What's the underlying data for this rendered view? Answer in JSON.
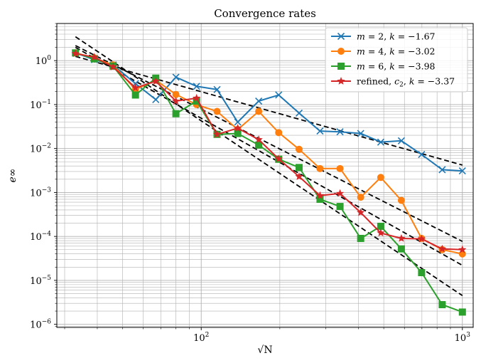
{
  "chart_data": {
    "type": "line",
    "title": "Convergence rates",
    "xlabel": "√N",
    "ylabel": "e∞",
    "xscale": "log",
    "yscale": "log",
    "xlim": [
      28,
      1100
    ],
    "ylim": [
      8.5e-07,
      7
    ],
    "grid": true,
    "legend_position": "top-right",
    "xticks": [
      {
        "value": 100,
        "base": "10",
        "exp": "2"
      },
      {
        "value": 1000,
        "base": "10",
        "exp": "3"
      }
    ],
    "yticks": [
      {
        "value": 1,
        "base": "10",
        "exp": "0"
      },
      {
        "value": 0.1,
        "base": "10",
        "exp": "−1"
      },
      {
        "value": 0.01,
        "base": "10",
        "exp": "−2"
      },
      {
        "value": 0.001,
        "base": "10",
        "exp": "−3"
      },
      {
        "value": 0.0001,
        "base": "10",
        "exp": "−4"
      },
      {
        "value": 1e-05,
        "base": "10",
        "exp": "−5"
      },
      {
        "value": 1e-06,
        "base": "10",
        "exp": "−6"
      }
    ],
    "series": [
      {
        "name": "m = 2, k = −1.67",
        "label_parts": {
          "a": "m",
          "b": " = 2, ",
          "c": "k",
          "d": " = −1.67"
        },
        "color": "#1f77b4",
        "marker": "x",
        "x": [
          33,
          39,
          46,
          56,
          67,
          80,
          96,
          115,
          138,
          166,
          198,
          237,
          285,
          340,
          408,
          487,
          584,
          698,
          837,
          1000
        ],
        "y": [
          1.5,
          1.05,
          0.8,
          0.3,
          0.13,
          0.42,
          0.26,
          0.22,
          0.04,
          0.12,
          0.165,
          0.064,
          0.025,
          0.024,
          0.022,
          0.014,
          0.015,
          0.0073,
          0.0033,
          0.0031
        ]
      },
      {
        "name": "m = 4, k = −3.02",
        "label_parts": {
          "a": "m",
          "b": " = 4, ",
          "c": "k",
          "d": " = −3.02"
        },
        "color": "#ff7f0e",
        "marker": "o",
        "x": [
          33,
          39,
          46,
          56,
          67,
          80,
          96,
          115,
          138,
          166,
          198,
          237,
          285,
          340,
          408,
          487,
          584,
          698,
          837,
          1000
        ],
        "y": [
          1.5,
          1.15,
          0.8,
          0.22,
          0.36,
          0.17,
          0.1,
          0.07,
          0.027,
          0.07,
          0.023,
          0.0096,
          0.0035,
          0.0035,
          0.00078,
          0.0022,
          0.00066,
          9e-05,
          5e-05,
          4e-05
        ]
      },
      {
        "name": "m = 6, k = −3.98",
        "label_parts": {
          "a": "m",
          "b": " = 6, ",
          "c": "k",
          "d": " = −3.98"
        },
        "color": "#2ca02c",
        "marker": "s",
        "x": [
          33,
          39,
          46,
          56,
          67,
          80,
          96,
          115,
          138,
          166,
          198,
          237,
          285,
          340,
          408,
          487,
          584,
          698,
          837,
          1000
        ],
        "y": [
          1.5,
          1.1,
          0.75,
          0.165,
          0.4,
          0.062,
          0.12,
          0.021,
          0.022,
          0.012,
          0.0057,
          0.0037,
          0.0007,
          0.00048,
          9e-05,
          0.00017,
          5.2e-05,
          1.5e-05,
          2.8e-06,
          1.9e-06
        ]
      },
      {
        "name": "refined, c₂, k = −3.37",
        "label_parts": {
          "a": "refined, ",
          "b": "c",
          "sub": "2",
          "c": ", ",
          "d": "k",
          "e": " = −3.37"
        },
        "color": "#d62728",
        "marker": "*",
        "x": [
          33,
          39,
          46,
          56,
          67,
          80,
          96,
          115,
          138,
          166,
          198,
          237,
          285,
          340,
          408,
          487,
          584,
          698,
          837,
          1000
        ],
        "y": [
          1.45,
          1.2,
          0.72,
          0.24,
          0.34,
          0.12,
          0.14,
          0.021,
          0.029,
          0.016,
          0.0058,
          0.0023,
          0.00085,
          0.00095,
          0.00035,
          0.00012,
          9e-05,
          8.8e-05,
          5.2e-05,
          5e-05
        ]
      }
    ],
    "fit_lines": [
      {
        "name": "fit m=2",
        "x": [
          33,
          1000
        ],
        "y": [
          1.25,
          0.0042
        ]
      },
      {
        "name": "fit m=4",
        "x": [
          33,
          1000
        ],
        "y": [
          2.2,
          7.7e-05
        ]
      },
      {
        "name": "fit m=6",
        "x": [
          33,
          1000
        ],
        "y": [
          3.5,
          4.5e-06
        ]
      },
      {
        "name": "fit refined",
        "x": [
          33,
          1000
        ],
        "y": [
          2.0,
          2.2e-05
        ]
      }
    ]
  }
}
